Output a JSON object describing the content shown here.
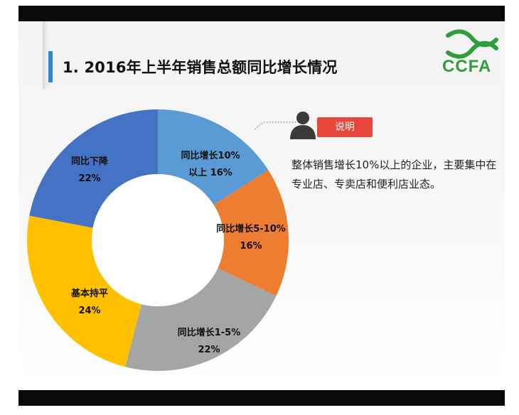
{
  "title": "1. 2016年上半年销售总额同比增长情况",
  "logo": {
    "text": "CCFA"
  },
  "note": {
    "badge": "说明",
    "text": "整体销售增长10%以上的企业，主要集中在专业店、专卖店和便利店业态。",
    "icon": "person-icon"
  },
  "colors": {
    "title_accent": "#2f88d4",
    "note_badge": "#e8463a",
    "logo": "#2f9e3a"
  },
  "chart_data": {
    "type": "pie",
    "donut": true,
    "title": "",
    "labels": [
      "同比增长10%以上",
      "同比增长5-10%",
      "同比增长1-5%",
      "基本持平",
      "同比下降"
    ],
    "values": [
      16,
      16,
      22,
      24,
      22
    ],
    "value_labels": [
      "16%",
      "16%",
      "22%",
      "24%",
      "22%"
    ],
    "colors": [
      "#5b9bd5",
      "#ed7d31",
      "#a5a5a5",
      "#ffc000",
      "#4472c4"
    ],
    "label_display": [
      [
        "同比增长10%",
        "以上 16%"
      ],
      [
        "同比增长5-10%",
        "16%"
      ],
      [
        "同比增长1-5%",
        "22%"
      ],
      [
        "基本持平",
        "24%"
      ],
      [
        "同比下降",
        "22%"
      ]
    ],
    "legend": "none"
  }
}
